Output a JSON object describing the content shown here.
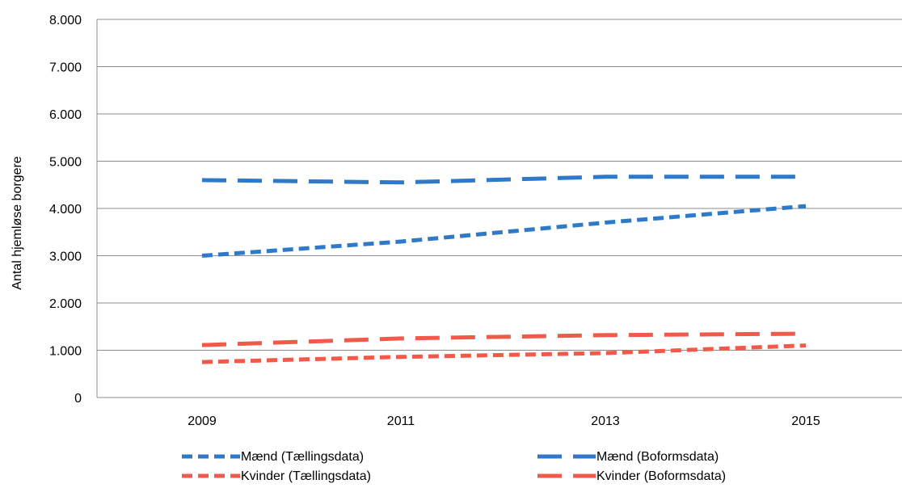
{
  "chart_data": {
    "type": "line",
    "title": "",
    "xlabel": "",
    "ylabel": "Antal hjemløse borgere",
    "categories": [
      "2009",
      "2011",
      "2013",
      "2015"
    ],
    "y_tick_labels": [
      "0",
      "1.000",
      "2.000",
      "3.000",
      "4.000",
      "5.000",
      "6.000",
      "7.000",
      "8.000"
    ],
    "ylim": [
      0,
      8000
    ],
    "grid": "horizontal",
    "legend_position": "bottom",
    "series": [
      {
        "name": "Mænd (Tællingsdata)",
        "values": [
          3000,
          3300,
          3700,
          4050
        ],
        "color": "#2f7ac8",
        "dash": "short"
      },
      {
        "name": "Mænd (Boformsdata)",
        "values": [
          4600,
          4550,
          4670,
          4670
        ],
        "color": "#2f7ac8",
        "dash": "long"
      },
      {
        "name": "Kvinder (Tællingsdata)",
        "values": [
          750,
          860,
          940,
          1100
        ],
        "color": "#f15a4a",
        "dash": "short"
      },
      {
        "name": "Kvinder (Boformsdata)",
        "values": [
          1110,
          1250,
          1320,
          1350
        ],
        "color": "#f15a4a",
        "dash": "long"
      }
    ]
  }
}
